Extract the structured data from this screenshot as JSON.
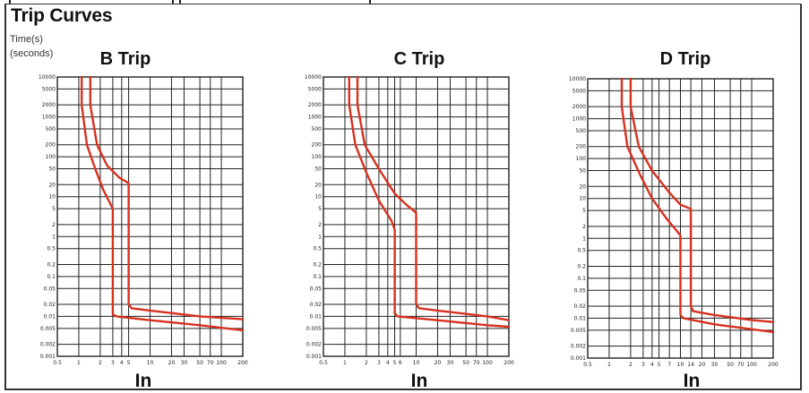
{
  "page": {
    "title": "Trip Curves",
    "ylabel_line1": "Time(s)",
    "ylabel_line2": "(seconds)"
  },
  "colors": {
    "curve": "#d8301e",
    "grid": "#222222",
    "frame": "#333333"
  },
  "chart_data": [
    {
      "type": "line",
      "title": "B Trip",
      "xlabel": "In",
      "ylabel": "Time(s) (seconds)",
      "x_scale": "log",
      "y_scale": "log",
      "xlim": [
        0.5,
        200
      ],
      "ylim": [
        0.001,
        10000
      ],
      "grid": true,
      "x_ticks": [
        "0.5",
        "1",
        "2",
        "3",
        "4",
        "5",
        "10",
        "20",
        "30",
        "50",
        "70",
        "100",
        "200"
      ],
      "y_ticks": [
        "10000",
        "5000",
        "2000",
        "1000",
        "500",
        "200",
        "100",
        "50",
        "20",
        "10",
        "5",
        "2",
        "1",
        "0.5",
        "0.2",
        "0.1",
        "0.05",
        "0.02",
        "0.01",
        "0.005",
        "0.002",
        "0.001"
      ],
      "series": [
        {
          "points": [
            [
              1.1,
              10000
            ],
            [
              1.1,
              2000
            ],
            [
              1.3,
              200
            ],
            [
              1.7,
              50
            ],
            [
              2.2,
              15
            ],
            [
              3,
              5
            ],
            [
              3,
              0.011
            ],
            [
              3.4,
              0.01
            ],
            [
              10,
              0.008
            ],
            [
              50,
              0.006
            ],
            [
              200,
              0.0045
            ]
          ]
        },
        {
          "points": [
            [
              1.45,
              10000
            ],
            [
              1.45,
              2000
            ],
            [
              1.8,
              200
            ],
            [
              2.5,
              60
            ],
            [
              3.7,
              30
            ],
            [
              5,
              22
            ],
            [
              5,
              0.02
            ],
            [
              5.5,
              0.016
            ],
            [
              10,
              0.014
            ],
            [
              50,
              0.01
            ],
            [
              200,
              0.0085
            ]
          ]
        }
      ]
    },
    {
      "type": "line",
      "title": "C Trip",
      "xlabel": "In",
      "ylabel": "Time(s) (seconds)",
      "x_scale": "log",
      "y_scale": "log",
      "xlim": [
        0.5,
        200
      ],
      "ylim": [
        0.001,
        10000
      ],
      "grid": true,
      "x_ticks": [
        "0.5",
        "1",
        "2",
        "3",
        "4",
        "5",
        "6",
        "10",
        "20",
        "30",
        "50",
        "70",
        "100",
        "200"
      ],
      "y_ticks": [
        "10000",
        "5000",
        "2000",
        "1000",
        "500",
        "200",
        "100",
        "50",
        "20",
        "10",
        "5",
        "2",
        "1",
        "0.5",
        "0.2",
        "0.1",
        "0.05",
        "0.02",
        "0.01",
        "0.005",
        "0.002",
        "0.001"
      ],
      "series": [
        {
          "points": [
            [
              1.15,
              10000
            ],
            [
              1.15,
              2000
            ],
            [
              1.4,
              200
            ],
            [
              2,
              40
            ],
            [
              3,
              8
            ],
            [
              4.5,
              2.5
            ],
            [
              5,
              1.5
            ],
            [
              5,
              0.012
            ],
            [
              5.5,
              0.01
            ],
            [
              20,
              0.008
            ],
            [
              100,
              0.006
            ],
            [
              200,
              0.0055
            ]
          ]
        },
        {
          "points": [
            [
              1.5,
              10000
            ],
            [
              1.5,
              2000
            ],
            [
              1.9,
              200
            ],
            [
              3,
              50
            ],
            [
              5,
              12
            ],
            [
              7.5,
              6
            ],
            [
              10,
              4
            ],
            [
              10,
              0.02
            ],
            [
              11,
              0.016
            ],
            [
              20,
              0.014
            ],
            [
              100,
              0.01
            ],
            [
              200,
              0.008
            ]
          ]
        }
      ]
    },
    {
      "type": "line",
      "title": "D Trip",
      "xlabel": "In",
      "ylabel": "Time(s) (seconds)",
      "x_scale": "log",
      "y_scale": "log",
      "xlim": [
        0.5,
        200
      ],
      "ylim": [
        0.001,
        10000
      ],
      "grid": true,
      "x_ticks": [
        "0.5",
        "1",
        "2",
        "3",
        "4",
        "5",
        "7",
        "10",
        "14",
        "20",
        "30",
        "50",
        "70",
        "100",
        "200"
      ],
      "y_ticks": [
        "10000",
        "5000",
        "2000",
        "1000",
        "500",
        "200",
        "100",
        "50",
        "20",
        "10",
        "5",
        "2",
        "1",
        "0.5",
        "0.2",
        "0.1",
        "0.05",
        "0.02",
        "0.01",
        "0.005",
        "0.002",
        "0.001"
      ],
      "series": [
        {
          "points": [
            [
              1.5,
              10000
            ],
            [
              1.5,
              2000
            ],
            [
              1.8,
              200
            ],
            [
              2.7,
              40
            ],
            [
              4,
              10
            ],
            [
              6.5,
              3
            ],
            [
              10,
              1.2
            ],
            [
              10,
              0.012
            ],
            [
              11,
              0.01
            ],
            [
              30,
              0.007
            ],
            [
              200,
              0.0045
            ]
          ]
        },
        {
          "points": [
            [
              2,
              10000
            ],
            [
              2,
              2000
            ],
            [
              2.6,
              200
            ],
            [
              4,
              50
            ],
            [
              7,
              14
            ],
            [
              10,
              7
            ],
            [
              14,
              5.5
            ],
            [
              14,
              0.02
            ],
            [
              15,
              0.015
            ],
            [
              30,
              0.012
            ],
            [
              100,
              0.009
            ],
            [
              200,
              0.008
            ]
          ]
        }
      ]
    }
  ]
}
